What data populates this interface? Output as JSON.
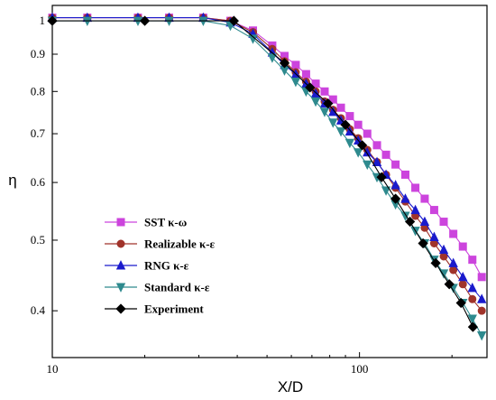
{
  "chart_data": {
    "type": "line",
    "xlabel": "X/D",
    "ylabel": "η",
    "xscale": "log",
    "yscale": "log",
    "xlim": [
      10,
      260
    ],
    "ylim": [
      0.345,
      1.05
    ],
    "x_ticks": [
      10,
      100
    ],
    "y_ticks": [
      0.4,
      0.5,
      0.6,
      0.7,
      0.8,
      0.9,
      1
    ],
    "legend_position": "bottom-left",
    "grid": false,
    "series": [
      {
        "name": "SST κ-ω",
        "color": "#cc44dd",
        "marker": "square",
        "x": [
          10,
          13,
          19,
          24,
          31,
          38,
          45,
          52,
          57,
          62,
          67,
          72,
          77,
          82,
          87,
          93,
          99,
          106,
          114,
          122,
          131,
          141,
          152,
          163,
          175,
          188,
          202,
          217,
          233,
          250
        ],
        "y": [
          1.01,
          1.01,
          1.01,
          1.01,
          1.01,
          1.0,
          0.97,
          0.925,
          0.895,
          0.87,
          0.845,
          0.82,
          0.8,
          0.78,
          0.76,
          0.74,
          0.72,
          0.7,
          0.675,
          0.655,
          0.635,
          0.615,
          0.59,
          0.57,
          0.55,
          0.53,
          0.51,
          0.49,
          0.47,
          0.445
        ]
      },
      {
        "name": "Realizable κ-ε",
        "color": "#a0332a",
        "marker": "circle",
        "x": [
          10,
          13,
          19,
          24,
          31,
          38,
          45,
          52,
          57,
          62,
          67,
          72,
          77,
          82,
          87,
          93,
          99,
          106,
          114,
          122,
          131,
          141,
          152,
          163,
          175,
          188,
          202,
          217,
          233,
          250
        ],
        "y": [
          1.01,
          1.01,
          1.01,
          1.01,
          1.01,
          1.0,
          0.965,
          0.915,
          0.88,
          0.85,
          0.825,
          0.8,
          0.775,
          0.755,
          0.735,
          0.71,
          0.69,
          0.665,
          0.64,
          0.615,
          0.59,
          0.565,
          0.54,
          0.52,
          0.495,
          0.475,
          0.455,
          0.435,
          0.415,
          0.4
        ]
      },
      {
        "name": "RNG κ-ε",
        "color": "#1a1acc",
        "marker": "triangle-up",
        "x": [
          10,
          13,
          19,
          24,
          31,
          38,
          45,
          52,
          57,
          62,
          67,
          72,
          77,
          82,
          87,
          93,
          99,
          106,
          114,
          122,
          131,
          141,
          152,
          163,
          175,
          188,
          202,
          217,
          233,
          250
        ],
        "y": [
          1.01,
          1.01,
          1.01,
          1.01,
          1.01,
          0.995,
          0.96,
          0.905,
          0.87,
          0.845,
          0.82,
          0.795,
          0.77,
          0.75,
          0.73,
          0.705,
          0.685,
          0.66,
          0.64,
          0.615,
          0.595,
          0.57,
          0.55,
          0.53,
          0.505,
          0.485,
          0.465,
          0.445,
          0.43,
          0.415
        ]
      },
      {
        "name": "Standard κ-ε",
        "color": "#2e8a8e",
        "marker": "triangle-down",
        "x": [
          10,
          13,
          19,
          24,
          31,
          38,
          45,
          52,
          57,
          62,
          67,
          72,
          77,
          82,
          87,
          93,
          99,
          106,
          114,
          122,
          131,
          141,
          152,
          163,
          175,
          188,
          202,
          217,
          233,
          250
        ],
        "y": [
          1.0,
          1.0,
          1.0,
          1.0,
          1.0,
          0.985,
          0.945,
          0.89,
          0.855,
          0.825,
          0.8,
          0.775,
          0.75,
          0.725,
          0.705,
          0.68,
          0.66,
          0.635,
          0.61,
          0.585,
          0.56,
          0.54,
          0.515,
          0.495,
          0.47,
          0.45,
          0.43,
          0.41,
          0.39,
          0.37
        ]
      },
      {
        "name": "Experiment",
        "color": "#000000",
        "marker": "diamond",
        "x": [
          10,
          20,
          39,
          57,
          69,
          79,
          90,
          102,
          118,
          131,
          146,
          161,
          177,
          196,
          214,
          234
        ],
        "y": [
          1.0,
          1.0,
          1.0,
          0.875,
          0.81,
          0.77,
          0.72,
          0.675,
          0.61,
          0.57,
          0.53,
          0.495,
          0.465,
          0.435,
          0.41,
          0.38
        ]
      }
    ]
  }
}
